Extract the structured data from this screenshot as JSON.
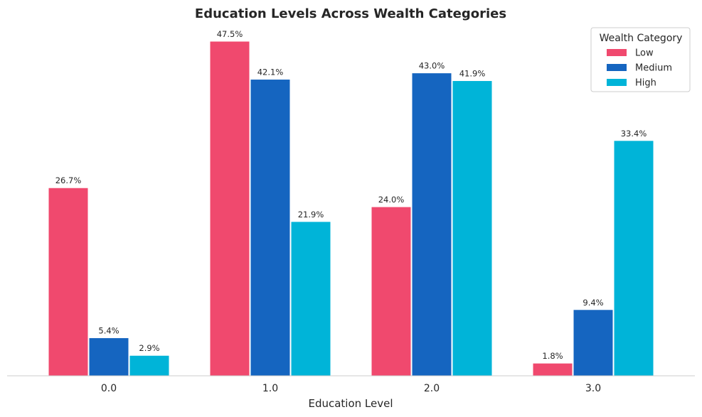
{
  "chart_data": {
    "type": "bar",
    "title": "Education Levels Across Wealth Categories",
    "xlabel": "Education Level",
    "ylabel": "",
    "categories": [
      "0.0",
      "1.0",
      "2.0",
      "3.0"
    ],
    "series": [
      {
        "name": "Low",
        "color": "#f0496e",
        "values": [
          26.7,
          47.5,
          24.0,
          1.8
        ],
        "labels": [
          "26.7%",
          "47.5%",
          "24.0%",
          "1.8%"
        ]
      },
      {
        "name": "Medium",
        "color": "#1565c0",
        "values": [
          5.4,
          42.1,
          43.0,
          9.4
        ],
        "labels": [
          "5.4%",
          "42.1%",
          "43.0%",
          "9.4%"
        ]
      },
      {
        "name": "High",
        "color": "#00b4d8",
        "values": [
          2.9,
          21.9,
          41.9,
          33.4
        ],
        "labels": [
          "2.9%",
          "21.9%",
          "41.9%",
          "33.4%"
        ]
      }
    ],
    "ylim": [
      0,
      50
    ],
    "grid": false,
    "legend": {
      "title": "Wealth Category",
      "position": "top-right"
    }
  }
}
